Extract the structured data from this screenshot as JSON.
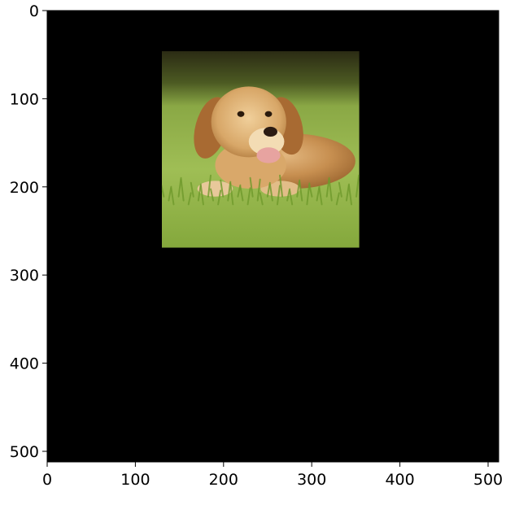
{
  "figure": {
    "kind": "image-display",
    "axes": {
      "x_ticks": [
        0,
        100,
        200,
        300,
        400,
        500
      ],
      "y_ticks": [
        0,
        100,
        200,
        300,
        400,
        500
      ],
      "x_range": [
        0,
        512
      ],
      "y_range": [
        512,
        0
      ],
      "y_inverted": true
    },
    "background_color": "#000000",
    "image": {
      "subject": "golden retriever lying on grass",
      "x_extent": [
        130,
        354
      ],
      "y_extent": [
        46,
        269
      ],
      "dominant_colors": [
        "#c08a4c",
        "#7f9c3a",
        "#a7c35e",
        "#2a2a14"
      ]
    }
  }
}
